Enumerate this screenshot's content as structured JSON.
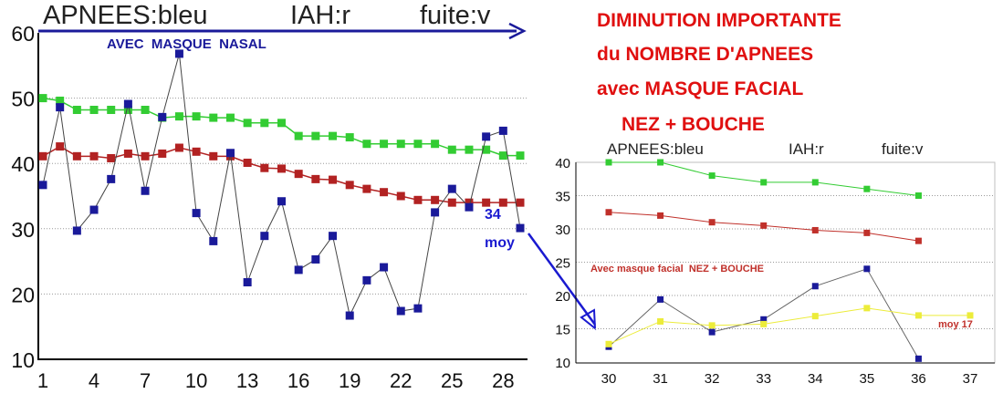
{
  "chart_data": [
    {
      "type": "line",
      "header": {
        "apnees": "APNEES:bleu",
        "iah": "IAH:r",
        "fuite": "fuite:v"
      },
      "annotation": "AVEC  MASQUE  NASAL",
      "average_label": {
        "value": "34",
        "text": "moy"
      },
      "ylim": [
        10,
        60
      ],
      "y_ticks": [
        "10",
        "20",
        "30",
        "40",
        "50",
        "60"
      ],
      "xlim": [
        1,
        29
      ],
      "x_ticks": [
        "1",
        "4",
        "7",
        "10",
        "13",
        "16",
        "19",
        "22",
        "25",
        "28"
      ],
      "grid": true,
      "x": [
        1,
        2,
        3,
        4,
        5,
        6,
        7,
        8,
        9,
        10,
        11,
        12,
        13,
        14,
        15,
        16,
        17,
        18,
        19,
        20,
        21,
        22,
        23,
        24,
        25,
        26,
        27,
        28,
        29
      ],
      "series": [
        {
          "name": "APNEES",
          "color": "#1a1a9a",
          "values": [
            36.7,
            48.6,
            29.7,
            32.9,
            37.6,
            49.1,
            35.8,
            47.1,
            56.8,
            32.4,
            28.1,
            41.6,
            21.8,
            28.9,
            34.2,
            23.7,
            25.3,
            28.9,
            16.7,
            22.1,
            24.1,
            17.4,
            17.8,
            32.5,
            36.1,
            33.3,
            44.1,
            45.0,
            30.1
          ]
        },
        {
          "name": "IAH",
          "color": "#b22222",
          "values": [
            41.1,
            42.6,
            41.1,
            41.1,
            40.8,
            41.5,
            41.1,
            41.5,
            42.4,
            41.8,
            41.1,
            41.1,
            40.1,
            39.3,
            39.2,
            38.4,
            37.6,
            37.5,
            36.7,
            36.1,
            35.6,
            35.0,
            34.4,
            34.4,
            34.0,
            34.0,
            34.0,
            34.0,
            34.0
          ]
        },
        {
          "name": "fuite",
          "color": "#33cc33",
          "values": [
            50.0,
            49.6,
            48.2,
            48.2,
            48.2,
            48.2,
            48.2,
            47.0,
            47.2,
            47.2,
            47.0,
            47.0,
            46.2,
            46.2,
            46.2,
            44.2,
            44.2,
            44.2,
            44.0,
            43.0,
            43.0,
            43.0,
            43.0,
            43.0,
            42.1,
            42.1,
            42.1,
            41.2,
            41.2
          ]
        }
      ]
    },
    {
      "type": "line",
      "header": {
        "apnees": "APNEES:bleu",
        "iah": "IAH:r",
        "fuite": "fuite:v"
      },
      "annotation": "Avec masque facial  NEZ + BOUCHE",
      "average_label": "moy 17",
      "ylim": [
        10,
        40
      ],
      "y_ticks": [
        "10",
        "15",
        "20",
        "25",
        "30",
        "35",
        "40"
      ],
      "xlim": [
        30,
        37
      ],
      "x_ticks": [
        "30",
        "31",
        "32",
        "33",
        "34",
        "35",
        "36",
        "37"
      ],
      "grid": true,
      "x": [
        30,
        31,
        32,
        33,
        34,
        35,
        36
      ],
      "series": [
        {
          "name": "fuite",
          "color": "#33cc33",
          "values": [
            40,
            40,
            38,
            37,
            37,
            36,
            35
          ]
        },
        {
          "name": "IAH",
          "color": "#c0302a",
          "values": [
            32.5,
            32,
            31,
            30.5,
            29.8,
            29.4,
            28.2
          ]
        },
        {
          "name": "APNEES",
          "color": "#1a1a9a",
          "values": [
            12.3,
            19.4,
            14.5,
            16.4,
            21.4,
            24,
            10.5
          ]
        },
        {
          "name": "moy",
          "color": "#ecec3a",
          "x": [
            30,
            31,
            32,
            33,
            34,
            35,
            36,
            37
          ],
          "values": [
            12.7,
            16.1,
            15.5,
            15.7,
            16.9,
            18.1,
            17,
            17
          ]
        }
      ]
    }
  ],
  "headline": {
    "lines": [
      "DIMINUTION IMPORTANTE",
      "du NOMBRE D'APNEES",
      "avec MASQUE FACIAL",
      "NEZ + BOUCHE"
    ],
    "color": "#e01010"
  },
  "colors": {
    "arrow": "#1a1ad0",
    "grid": "#9a9a9a"
  }
}
